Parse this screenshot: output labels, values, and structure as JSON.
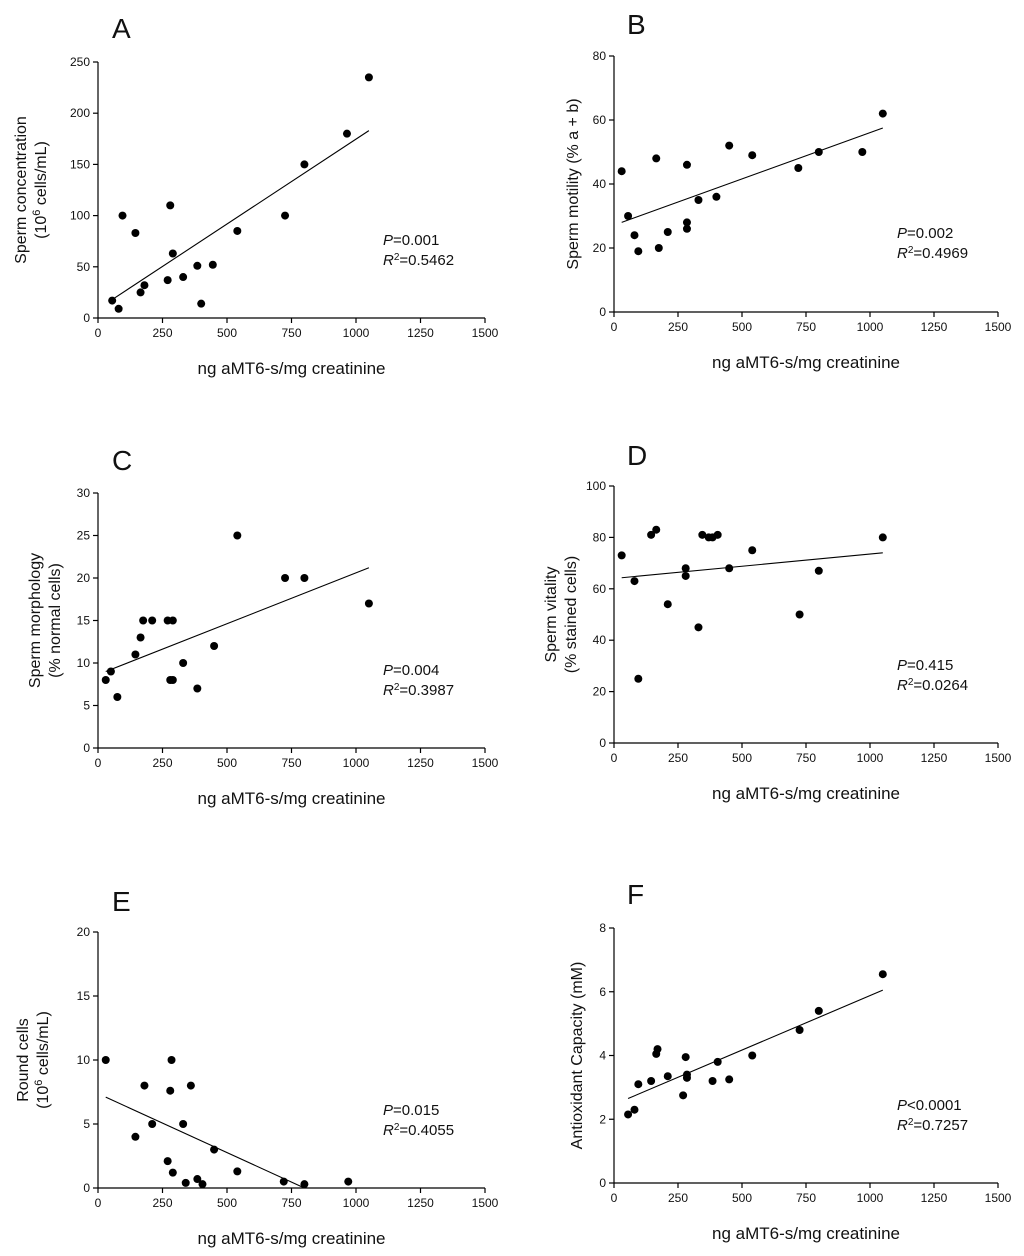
{
  "chart_data": [
    {
      "panel": "A",
      "type": "scatter",
      "xlabel": "ng aMT6-s/mg creatinine",
      "ylabel_lines": [
        {
          "parts": [
            {
              "t": "Sperm concentration"
            }
          ]
        },
        {
          "parts": [
            {
              "t": "(10"
            },
            {
              "t": "6",
              "sup": true
            },
            {
              "t": " cells/mL)"
            }
          ]
        }
      ],
      "xlim": [
        0,
        1500
      ],
      "ylim": [
        0,
        250
      ],
      "xticks": [
        0,
        250,
        500,
        750,
        1000,
        1250,
        1500
      ],
      "yticks": [
        0,
        50,
        100,
        150,
        200,
        250
      ],
      "points": [
        [
          55,
          17
        ],
        [
          80,
          9
        ],
        [
          95,
          100
        ],
        [
          145,
          83
        ],
        [
          165,
          25
        ],
        [
          180,
          32
        ],
        [
          270,
          37
        ],
        [
          280,
          110
        ],
        [
          290,
          63
        ],
        [
          330,
          40
        ],
        [
          385,
          51
        ],
        [
          400,
          14
        ],
        [
          445,
          52
        ],
        [
          540,
          85
        ],
        [
          725,
          100
        ],
        [
          800,
          150
        ],
        [
          965,
          180
        ],
        [
          1050,
          235
        ]
      ],
      "fit": {
        "x": [
          55,
          1050
        ],
        "y": [
          18,
          183
        ]
      },
      "stats": {
        "p_label": "P",
        "p_value": "=0.001",
        "r_label": "R",
        "r_sup": "2",
        "r_value": "=0.5462"
      }
    },
    {
      "panel": "B",
      "type": "scatter",
      "xlabel": "ng aMT6-s/mg creatinine",
      "ylabel_lines": [
        {
          "parts": [
            {
              "t": "Sperm motility (% a + b)"
            }
          ]
        }
      ],
      "xlim": [
        0,
        1500
      ],
      "ylim": [
        0,
        80
      ],
      "xticks": [
        0,
        250,
        500,
        750,
        1000,
        1250,
        1500
      ],
      "yticks": [
        0,
        20,
        40,
        60,
        80
      ],
      "points": [
        [
          30,
          44
        ],
        [
          55,
          30
        ],
        [
          80,
          24
        ],
        [
          95,
          19
        ],
        [
          165,
          48
        ],
        [
          175,
          20
        ],
        [
          210,
          25
        ],
        [
          285,
          46
        ],
        [
          285,
          28
        ],
        [
          285,
          26
        ],
        [
          330,
          35
        ],
        [
          400,
          36
        ],
        [
          450,
          52
        ],
        [
          540,
          49
        ],
        [
          720,
          45
        ],
        [
          800,
          50
        ],
        [
          970,
          50
        ],
        [
          1050,
          62
        ]
      ],
      "fit": {
        "x": [
          30,
          1050
        ],
        "y": [
          28,
          57.5
        ]
      },
      "stats": {
        "p_label": "P",
        "p_value": "=0.002",
        "r_label": "R",
        "r_sup": "2",
        "r_value": "=0.4969"
      }
    },
    {
      "panel": "C",
      "type": "scatter",
      "xlabel": "ng aMT6-s/mg creatinine",
      "ylabel_lines": [
        {
          "parts": [
            {
              "t": "Sperm morphology"
            }
          ]
        },
        {
          "parts": [
            {
              "t": "(% normal cells)"
            }
          ]
        }
      ],
      "xlim": [
        0,
        1500
      ],
      "ylim": [
        0,
        30
      ],
      "xticks": [
        0,
        250,
        500,
        750,
        1000,
        1250,
        1500
      ],
      "yticks": [
        0,
        5,
        10,
        15,
        20,
        25,
        30
      ],
      "points": [
        [
          30,
          8
        ],
        [
          50,
          9
        ],
        [
          75,
          6
        ],
        [
          145,
          11
        ],
        [
          165,
          13
        ],
        [
          175,
          15
        ],
        [
          210,
          15
        ],
        [
          270,
          15
        ],
        [
          280,
          8
        ],
        [
          290,
          8
        ],
        [
          290,
          15
        ],
        [
          330,
          10
        ],
        [
          385,
          7
        ],
        [
          450,
          12
        ],
        [
          540,
          25
        ],
        [
          725,
          20
        ],
        [
          800,
          20
        ],
        [
          1050,
          17
        ]
      ],
      "fit": {
        "x": [
          30,
          1050
        ],
        "y": [
          9,
          21.2
        ]
      },
      "stats": {
        "p_label": "P",
        "p_value": "=0.004",
        "r_label": "R",
        "r_sup": "2",
        "r_value": "=0.3987"
      }
    },
    {
      "panel": "D",
      "type": "scatter",
      "xlabel": "ng aMT6-s/mg creatinine",
      "ylabel_lines": [
        {
          "parts": [
            {
              "t": "Sperm vitality"
            }
          ]
        },
        {
          "parts": [
            {
              "t": "(% stained cells)"
            }
          ]
        }
      ],
      "xlim": [
        0,
        1500
      ],
      "ylim": [
        0,
        100
      ],
      "xticks": [
        0,
        250,
        500,
        750,
        1000,
        1250,
        1500
      ],
      "yticks": [
        0,
        20,
        40,
        60,
        80,
        100
      ],
      "points": [
        [
          30,
          73
        ],
        [
          80,
          63
        ],
        [
          95,
          25
        ],
        [
          145,
          81
        ],
        [
          165,
          83
        ],
        [
          210,
          54
        ],
        [
          280,
          68
        ],
        [
          280,
          65
        ],
        [
          330,
          45
        ],
        [
          345,
          81
        ],
        [
          370,
          80
        ],
        [
          385,
          80
        ],
        [
          405,
          81
        ],
        [
          450,
          68
        ],
        [
          540,
          75
        ],
        [
          725,
          50
        ],
        [
          800,
          67
        ],
        [
          1050,
          80
        ]
      ],
      "fit": {
        "x": [
          30,
          1050
        ],
        "y": [
          64.3,
          74
        ]
      },
      "stats": {
        "p_label": "P",
        "p_value": "=0.415",
        "r_label": "R",
        "r_sup": "2",
        "r_value": "=0.0264"
      }
    },
    {
      "panel": "E",
      "type": "scatter",
      "xlabel": "ng aMT6-s/mg creatinine",
      "ylabel_lines": [
        {
          "parts": [
            {
              "t": "Round cells"
            }
          ]
        },
        {
          "parts": [
            {
              "t": "(10"
            },
            {
              "t": "6",
              "sup": true
            },
            {
              "t": " cells/mL)"
            }
          ]
        }
      ],
      "xlim": [
        0,
        1500
      ],
      "ylim": [
        0,
        20
      ],
      "xticks": [
        0,
        250,
        500,
        750,
        1000,
        1250,
        1500
      ],
      "yticks": [
        0,
        5,
        10,
        15,
        20
      ],
      "points": [
        [
          30,
          10
        ],
        [
          145,
          4
        ],
        [
          180,
          8
        ],
        [
          210,
          5
        ],
        [
          270,
          2.1
        ],
        [
          280,
          7.6
        ],
        [
          285,
          10
        ],
        [
          290,
          1.2
        ],
        [
          330,
          5
        ],
        [
          340,
          0.4
        ],
        [
          360,
          8
        ],
        [
          385,
          0.7
        ],
        [
          405,
          0.3
        ],
        [
          450,
          3
        ],
        [
          540,
          1.3
        ],
        [
          720,
          0.5
        ],
        [
          800,
          0.3
        ],
        [
          970,
          0.5
        ]
      ],
      "fit": {
        "x": [
          30,
          800
        ],
        "y": [
          7.1,
          0
        ]
      },
      "stats": {
        "p_label": "P",
        "p_value": "=0.015",
        "r_label": "R",
        "r_sup": "2",
        "r_value": "=0.4055"
      }
    },
    {
      "panel": "F",
      "type": "scatter",
      "xlabel": "ng aMT6-s/mg creatinine",
      "ylabel_lines": [
        {
          "parts": [
            {
              "t": "Antioxidant Capacity (mM)"
            }
          ]
        }
      ],
      "xlim": [
        0,
        1500
      ],
      "ylim": [
        0,
        8
      ],
      "xticks": [
        0,
        250,
        500,
        750,
        1000,
        1250,
        1500
      ],
      "yticks": [
        0,
        2,
        4,
        6,
        8
      ],
      "points": [
        [
          55,
          2.15
        ],
        [
          80,
          2.3
        ],
        [
          95,
          3.1
        ],
        [
          145,
          3.2
        ],
        [
          165,
          4.05
        ],
        [
          170,
          4.2
        ],
        [
          210,
          3.35
        ],
        [
          270,
          2.75
        ],
        [
          280,
          3.95
        ],
        [
          285,
          3.3
        ],
        [
          285,
          3.4
        ],
        [
          385,
          3.2
        ],
        [
          405,
          3.8
        ],
        [
          450,
          3.25
        ],
        [
          540,
          4
        ],
        [
          725,
          4.8
        ],
        [
          800,
          5.4
        ],
        [
          1050,
          6.55
        ]
      ],
      "fit": {
        "x": [
          55,
          1050
        ],
        "y": [
          2.65,
          6.05
        ]
      },
      "stats": {
        "p_label": "P",
        "p_value": "<0.0001",
        "r_label": "R",
        "r_sup": "2",
        "r_value": "=0.7257"
      }
    }
  ]
}
